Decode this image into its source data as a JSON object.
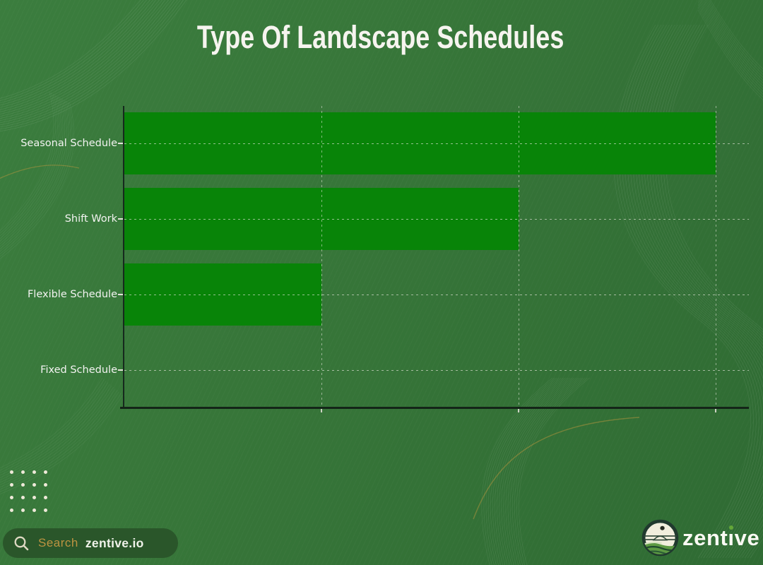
{
  "page": {
    "title": "Type Of Landscape Schedules"
  },
  "chart_data": {
    "type": "bar",
    "orientation": "horizontal",
    "title": "Type Of Landscape Schedules",
    "categories": [
      "Seasonal Schedule",
      "Shift Work",
      "Flexible Schedule",
      "Fixed Schedule"
    ],
    "values": [
      3,
      2,
      1,
      0
    ],
    "xlim": [
      0,
      3.17
    ],
    "xticks": [
      1,
      2,
      3
    ],
    "xlabel": "",
    "ylabel": "",
    "tick_labels_shown": false,
    "grid": "dashed",
    "legend": "none",
    "bar_color": "#088408"
  },
  "footer": {
    "search": {
      "icon": "magnifier-icon",
      "label": "Search",
      "value": "zentive.io"
    },
    "logo": {
      "icon": "zentive-landscape-logo-icon",
      "brand": "zentive"
    }
  },
  "colors": {
    "background": "#37763a",
    "bar": "#088408",
    "title_text": "#f6f4ef",
    "axis_label_text": "#f3f3f1",
    "gridline": "#e9e9df",
    "axis_spine": "#142518",
    "search_pill_bg": "#2a562a",
    "search_label_gold": "#bd9341",
    "search_value_text": "#f0f2ea",
    "brand_text": "#fbfaf4",
    "brand_i_dot": "#64a738",
    "dots": "#efe9d9",
    "accent_gold_wave": "#c69a3e"
  }
}
